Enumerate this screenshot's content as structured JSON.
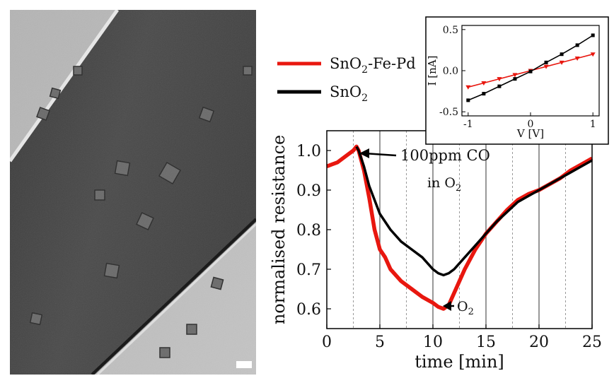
{
  "tem_image": {
    "description_name": "TEM micrograph of nanowire with nanoparticles"
  },
  "legend": {
    "entries": [
      {
        "base": "SnO",
        "sub": "2",
        "suffix": "-Fe-Pd",
        "color": "#e8170f"
      },
      {
        "base": "SnO",
        "sub": "2",
        "suffix": "",
        "color": "#000000"
      }
    ]
  },
  "colors": {
    "red": "#e8170f",
    "black": "#000000"
  },
  "chart_data": [
    {
      "type": "line",
      "xlabel": "time [min]",
      "ylabel": "normalised resistance",
      "xlim": [
        0,
        25
      ],
      "ylim": [
        0.55,
        1.05
      ],
      "xticks": [
        0,
        5,
        10,
        15,
        20,
        25
      ],
      "yticks": [
        0.6,
        0.7,
        0.8,
        0.9,
        1.0
      ],
      "series": [
        {
          "name": "SnO2-Fe-Pd",
          "color": "#e8170f",
          "x": [
            0,
            0.5,
            1,
            1.5,
            2,
            2.5,
            2.8,
            3,
            3.5,
            4,
            4.5,
            5,
            5.5,
            6,
            7,
            8,
            9,
            10,
            10.5,
            11,
            11.5,
            12,
            13,
            14,
            15,
            16,
            17,
            18,
            19,
            20,
            21,
            22,
            23,
            24,
            25
          ],
          "y": [
            0.96,
            0.965,
            0.97,
            0.98,
            0.99,
            1.0,
            1.01,
            1.0,
            0.95,
            0.88,
            0.8,
            0.75,
            0.73,
            0.7,
            0.67,
            0.65,
            0.63,
            0.615,
            0.605,
            0.6,
            0.61,
            0.64,
            0.7,
            0.75,
            0.79,
            0.82,
            0.85,
            0.875,
            0.89,
            0.9,
            0.915,
            0.93,
            0.95,
            0.965,
            0.98
          ]
        },
        {
          "name": "SnO2",
          "color": "#000000",
          "x": [
            2.8,
            3,
            3.5,
            4,
            5,
            6,
            7,
            8,
            9,
            10,
            10.5,
            11,
            11.5,
            12,
            13,
            14,
            15,
            16,
            17,
            18,
            19,
            20,
            21,
            22,
            23,
            24,
            25
          ],
          "y": [
            1.01,
            1.0,
            0.96,
            0.91,
            0.84,
            0.8,
            0.77,
            0.75,
            0.73,
            0.7,
            0.69,
            0.685,
            0.69,
            0.7,
            0.73,
            0.76,
            0.79,
            0.82,
            0.845,
            0.87,
            0.885,
            0.9,
            0.915,
            0.93,
            0.945,
            0.96,
            0.975
          ]
        }
      ],
      "vertical_lines_solid": [
        5,
        10,
        15,
        20
      ],
      "vertical_lines_dotted": [
        2.5,
        7.5,
        12.5,
        17.5,
        22.5
      ],
      "annotations": [
        {
          "text": "100ppm CO",
          "target": [
            3,
            1.01
          ]
        },
        {
          "text": "in O",
          "sub": "2"
        },
        {
          "text": "O",
          "sub": "2",
          "target": [
            11,
            0.6
          ]
        }
      ]
    },
    {
      "type": "line",
      "xlabel": "V [V]",
      "ylabel": "I [nA]",
      "xlim": [
        -1.1,
        1.1
      ],
      "ylim": [
        -0.55,
        0.55
      ],
      "xticks": [
        -1,
        0,
        1
      ],
      "xtick_labels": [
        "-1",
        "0",
        "1"
      ],
      "yticks": [
        -0.5,
        0.0,
        0.5
      ],
      "ytick_labels": [
        "-0.5",
        "0.0",
        "0.5"
      ],
      "series": [
        {
          "name": "SnO2-Fe-Pd",
          "color": "#e8170f",
          "marker": "triangle-down",
          "x": [
            -1,
            -0.75,
            -0.5,
            -0.25,
            0,
            0.25,
            0.5,
            0.75,
            1
          ],
          "y": [
            -0.2,
            -0.15,
            -0.1,
            -0.05,
            0.0,
            0.05,
            0.1,
            0.15,
            0.2
          ]
        },
        {
          "name": "SnO2",
          "color": "#000000",
          "marker": "square",
          "x": [
            -1,
            -0.75,
            -0.5,
            -0.25,
            0,
            0.25,
            0.5,
            0.75,
            1
          ],
          "y": [
            -0.36,
            -0.28,
            -0.19,
            -0.1,
            -0.01,
            0.1,
            0.2,
            0.31,
            0.43
          ]
        }
      ]
    }
  ]
}
